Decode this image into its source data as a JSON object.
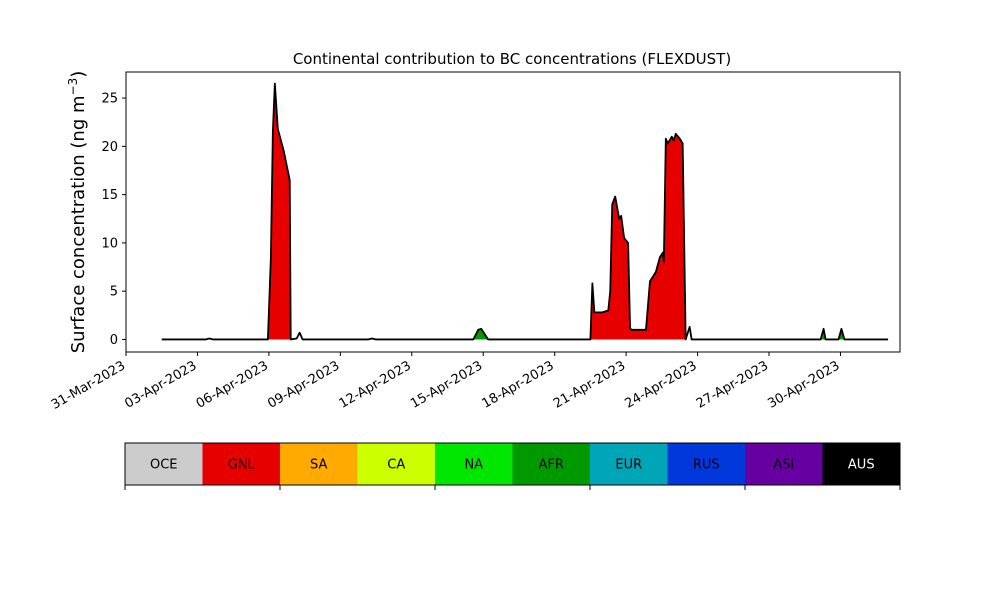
{
  "chart_data": {
    "type": "area",
    "title": "Continental contribution to BC concentrations (FLEXDUST)",
    "ylabel": "Surface concentration (ng m",
    "ylabel_exponent": "−3",
    "ylabel_close": ")",
    "xlim": [
      "2023-03-31T00:00",
      "2023-05-02T12:00"
    ],
    "ylim": [
      -1.3,
      27.7
    ],
    "x_ticks": [
      "31-Mar-2023",
      "03-Apr-2023",
      "06-Apr-2023",
      "09-Apr-2023",
      "12-Apr-2023",
      "15-Apr-2023",
      "18-Apr-2023",
      "21-Apr-2023",
      "24-Apr-2023",
      "27-Apr-2023",
      "30-Apr-2023"
    ],
    "x_tick_dates": [
      "2023-03-31",
      "2023-04-03",
      "2023-04-06",
      "2023-04-09",
      "2023-04-12",
      "2023-04-15",
      "2023-04-18",
      "2023-04-21",
      "2023-04-24",
      "2023-04-27",
      "2023-04-30"
    ],
    "y_ticks": [
      0,
      5,
      10,
      15,
      20,
      25
    ],
    "grid": false,
    "series": [
      {
        "name": "GNL",
        "color": "#e60000",
        "points": [
          [
            "2023-04-01T12:00",
            0
          ],
          [
            "2023-04-05T23:00",
            0
          ],
          [
            "2023-04-06T02:00",
            8.5
          ],
          [
            "2023-04-06T04:00",
            21.5
          ],
          [
            "2023-04-06T06:00",
            26.5
          ],
          [
            "2023-04-06T09:00",
            21.8
          ],
          [
            "2023-04-06T15:00",
            19.5
          ],
          [
            "2023-04-06T21:00",
            16.5
          ],
          [
            "2023-04-06T22:00",
            0
          ],
          [
            "2023-04-19T12:00",
            0
          ],
          [
            "2023-04-19T14:00",
            5.8
          ],
          [
            "2023-04-19T16:00",
            2.8
          ],
          [
            "2023-04-20T00:00",
            2.8
          ],
          [
            "2023-04-20T06:00",
            3.0
          ],
          [
            "2023-04-20T08:00",
            5.0
          ],
          [
            "2023-04-20T10:00",
            14.0
          ],
          [
            "2023-04-20T13:00",
            14.8
          ],
          [
            "2023-04-20T17:00",
            12.5
          ],
          [
            "2023-04-20T19:00",
            12.8
          ],
          [
            "2023-04-20T22:00",
            10.5
          ],
          [
            "2023-04-21T02:00",
            10.0
          ],
          [
            "2023-04-21T04:00",
            1.1
          ],
          [
            "2023-04-21T06:00",
            1.0
          ],
          [
            "2023-04-21T08:00",
            1.0
          ],
          [
            "2023-04-21T20:00",
            1.0
          ],
          [
            "2023-04-22T00:00",
            6.0
          ],
          [
            "2023-04-22T06:00",
            7.0
          ],
          [
            "2023-04-22T10:00",
            8.5
          ],
          [
            "2023-04-22T13:00",
            9.0
          ],
          [
            "2023-04-22T14:00",
            8.0
          ],
          [
            "2023-04-22T16:00",
            20.8
          ],
          [
            "2023-04-22T18:00",
            20.3
          ],
          [
            "2023-04-22T22:00",
            21.0
          ],
          [
            "2023-04-23T00:00",
            20.6
          ],
          [
            "2023-04-23T02:00",
            21.3
          ],
          [
            "2023-04-23T06:00",
            20.8
          ],
          [
            "2023-04-23T09:00",
            20.3
          ],
          [
            "2023-04-23T12:00",
            0
          ],
          [
            "2023-05-02T00:00",
            0
          ]
        ]
      },
      {
        "name": "AFR",
        "color": "#009a00",
        "points": [
          [
            "2023-04-14T14:00",
            0
          ],
          [
            "2023-04-14T19:00",
            1.0
          ],
          [
            "2023-04-14T22:00",
            1.1
          ],
          [
            "2023-04-15T05:00",
            0
          ],
          [
            "2023-04-29T04:00",
            0
          ],
          [
            "2023-04-29T07:00",
            1.1
          ],
          [
            "2023-04-29T09:00",
            0
          ],
          [
            "2023-04-29T22:00",
            0
          ],
          [
            "2023-04-30T01:00",
            1.1
          ],
          [
            "2023-04-30T04:00",
            0
          ]
        ]
      }
    ],
    "total": {
      "name": "Total",
      "color": "#000000",
      "points": [
        [
          "2023-04-01T12:00",
          0
        ],
        [
          "2023-04-03T08:00",
          0
        ],
        [
          "2023-04-03T12:00",
          0.1
        ],
        [
          "2023-04-03T16:00",
          0
        ],
        [
          "2023-04-05T23:00",
          0
        ],
        [
          "2023-04-06T02:00",
          8.5
        ],
        [
          "2023-04-06T04:00",
          21.5
        ],
        [
          "2023-04-06T06:00",
          26.5
        ],
        [
          "2023-04-06T09:00",
          21.8
        ],
        [
          "2023-04-06T15:00",
          19.5
        ],
        [
          "2023-04-06T21:00",
          16.5
        ],
        [
          "2023-04-06T22:00",
          0
        ],
        [
          "2023-04-07T04:00",
          0.1
        ],
        [
          "2023-04-07T07:00",
          0.7
        ],
        [
          "2023-04-07T10:00",
          0
        ],
        [
          "2023-04-10T04:00",
          0
        ],
        [
          "2023-04-10T08:00",
          0.1
        ],
        [
          "2023-04-10T12:00",
          0
        ],
        [
          "2023-04-14T14:00",
          0
        ],
        [
          "2023-04-14T19:00",
          1.0
        ],
        [
          "2023-04-14T22:00",
          1.1
        ],
        [
          "2023-04-15T05:00",
          0
        ],
        [
          "2023-04-19T12:00",
          0
        ],
        [
          "2023-04-19T14:00",
          5.8
        ],
        [
          "2023-04-19T16:00",
          2.8
        ],
        [
          "2023-04-20T00:00",
          2.8
        ],
        [
          "2023-04-20T06:00",
          3.0
        ],
        [
          "2023-04-20T08:00",
          5.0
        ],
        [
          "2023-04-20T10:00",
          14.0
        ],
        [
          "2023-04-20T13:00",
          14.8
        ],
        [
          "2023-04-20T17:00",
          12.5
        ],
        [
          "2023-04-20T19:00",
          12.8
        ],
        [
          "2023-04-20T22:00",
          10.5
        ],
        [
          "2023-04-21T02:00",
          10.0
        ],
        [
          "2023-04-21T04:00",
          1.1
        ],
        [
          "2023-04-21T06:00",
          1.0
        ],
        [
          "2023-04-21T08:00",
          1.0
        ],
        [
          "2023-04-21T20:00",
          1.0
        ],
        [
          "2023-04-22T00:00",
          6.0
        ],
        [
          "2023-04-22T06:00",
          7.0
        ],
        [
          "2023-04-22T10:00",
          8.5
        ],
        [
          "2023-04-22T13:00",
          9.0
        ],
        [
          "2023-04-22T14:00",
          8.0
        ],
        [
          "2023-04-22T16:00",
          20.8
        ],
        [
          "2023-04-22T18:00",
          20.3
        ],
        [
          "2023-04-22T22:00",
          21.0
        ],
        [
          "2023-04-23T00:00",
          20.6
        ],
        [
          "2023-04-23T02:00",
          21.3
        ],
        [
          "2023-04-23T06:00",
          20.8
        ],
        [
          "2023-04-23T09:00",
          20.3
        ],
        [
          "2023-04-23T12:00",
          0
        ],
        [
          "2023-04-23T16:00",
          1.3
        ],
        [
          "2023-04-23T18:00",
          0
        ],
        [
          "2023-04-29T04:00",
          0
        ],
        [
          "2023-04-29T07:00",
          1.1
        ],
        [
          "2023-04-29T09:00",
          0
        ],
        [
          "2023-04-29T22:00",
          0
        ],
        [
          "2023-04-30T01:00",
          1.1
        ],
        [
          "2023-04-30T04:00",
          0
        ],
        [
          "2023-05-02T00:00",
          0
        ]
      ]
    },
    "legend": {
      "placement": "bottom",
      "items": [
        {
          "label": "OCE",
          "color": "#cccccc",
          "text_color": "#000000"
        },
        {
          "label": "GNL",
          "color": "#e60000",
          "text_color": "#000000"
        },
        {
          "label": "SA",
          "color": "#ffaa00",
          "text_color": "#000000"
        },
        {
          "label": "CA",
          "color": "#ccff00",
          "text_color": "#000000"
        },
        {
          "label": "NA",
          "color": "#00e600",
          "text_color": "#000000"
        },
        {
          "label": "AFR",
          "color": "#009a00",
          "text_color": "#000000"
        },
        {
          "label": "EUR",
          "color": "#00a5b8",
          "text_color": "#000000"
        },
        {
          "label": "RUS",
          "color": "#0038dc",
          "text_color": "#000000"
        },
        {
          "label": "ASI",
          "color": "#6600a1",
          "text_color": "#000000"
        },
        {
          "label": "AUS",
          "color": "#000000",
          "text_color": "#ffffff"
        }
      ]
    }
  }
}
